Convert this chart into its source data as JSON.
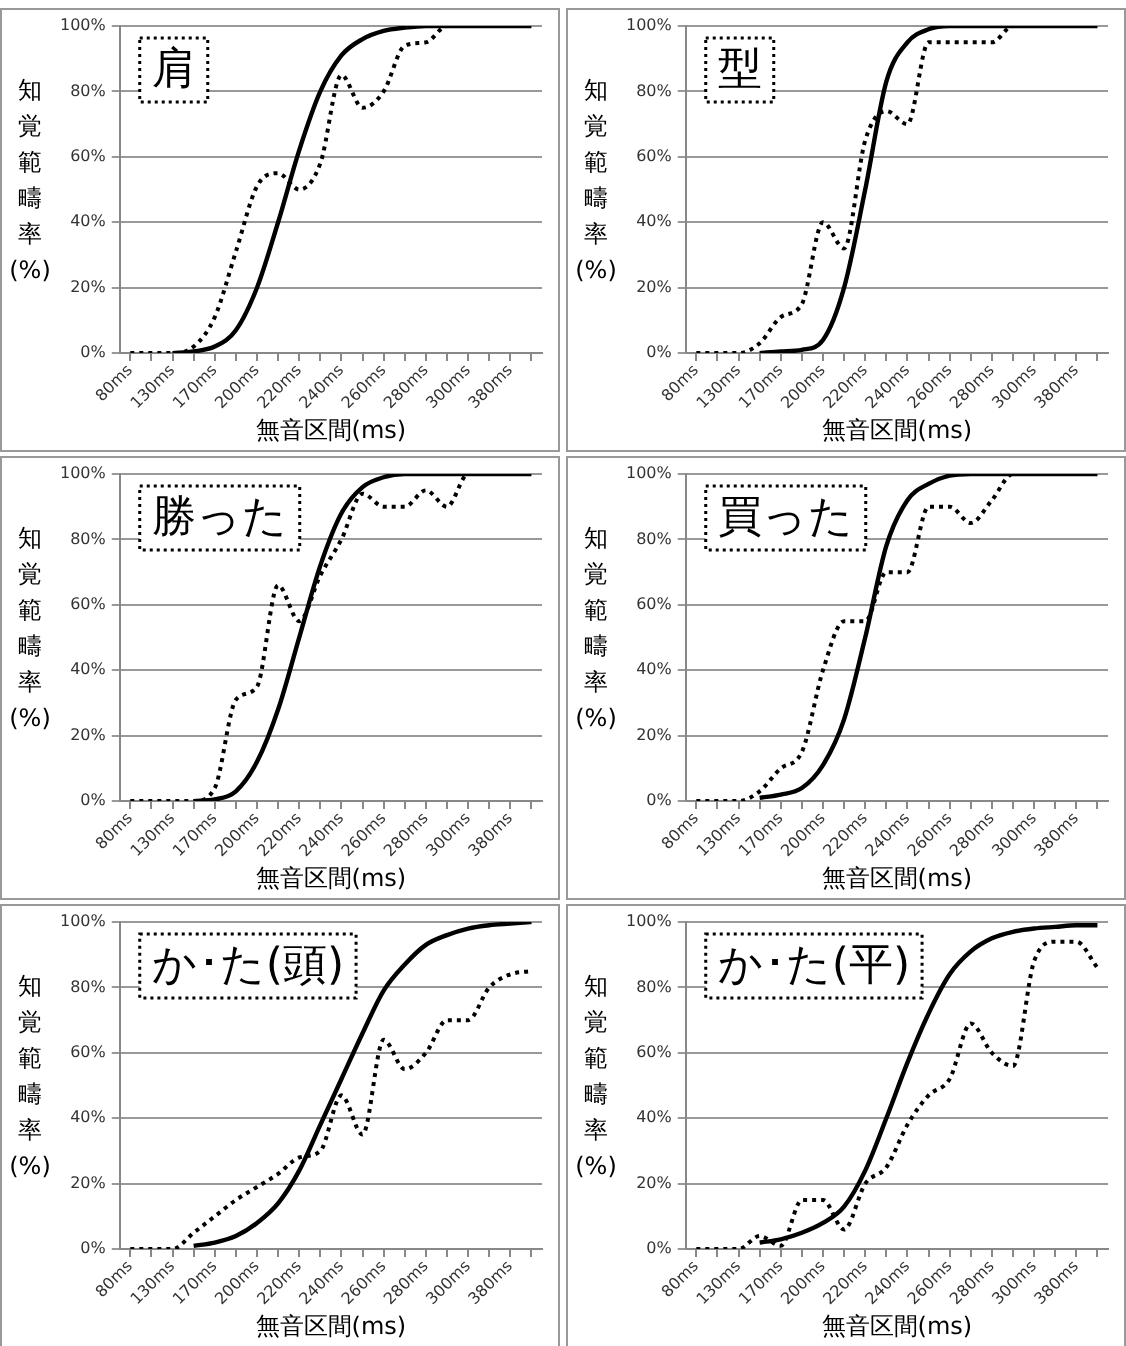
{
  "chart_data": [
    {
      "type": "line",
      "xlabel": "無音区間(ms)",
      "ylabel": "知覚範疇率(%)",
      "annotations": [
        "肩"
      ],
      "grid": "y",
      "ylim": [
        0,
        100
      ],
      "yticks": [
        {
          "value": 0,
          "label": "0%"
        },
        {
          "value": 20,
          "label": "20%"
        },
        {
          "value": 40,
          "label": "40%"
        },
        {
          "value": 60,
          "label": "60%"
        },
        {
          "value": 80,
          "label": "80%"
        },
        {
          "value": 100,
          "label": "100%"
        }
      ],
      "categories": [
        "80ms",
        null,
        "130ms",
        null,
        "170ms",
        null,
        "200ms",
        null,
        "220ms",
        null,
        "240ms",
        null,
        "260ms",
        null,
        "280ms",
        null,
        "300ms",
        null,
        "380ms",
        null
      ],
      "series": [
        {
          "color": "#000000",
          "line_style": "solid",
          "values": [
            null,
            null,
            0,
            0.5,
            2,
            7,
            20,
            40,
            62,
            80,
            91,
            96,
            98.5,
            99.5,
            100,
            100,
            100,
            100,
            100,
            100
          ]
        },
        {
          "color": "#000000",
          "line_style": "dotted",
          "values": [
            0,
            0,
            0,
            2,
            11,
            31,
            51,
            55,
            50,
            58,
            85,
            75,
            80,
            94,
            95,
            100,
            100,
            100,
            100,
            100
          ]
        }
      ]
    },
    {
      "type": "line",
      "xlabel": "無音区間(ms)",
      "ylabel": "知覚範疇率(%)",
      "annotations": [
        "型"
      ],
      "grid": "y",
      "ylim": [
        0,
        100
      ],
      "yticks": [
        {
          "value": 0,
          "label": "0%"
        },
        {
          "value": 20,
          "label": "20%"
        },
        {
          "value": 40,
          "label": "40%"
        },
        {
          "value": 60,
          "label": "60%"
        },
        {
          "value": 80,
          "label": "80%"
        },
        {
          "value": 100,
          "label": "100%"
        }
      ],
      "categories": [
        "80ms",
        null,
        "130ms",
        null,
        "170ms",
        null,
        "200ms",
        null,
        "220ms",
        null,
        "240ms",
        null,
        "260ms",
        null,
        "280ms",
        null,
        "300ms",
        null,
        "380ms",
        null
      ],
      "series": [
        {
          "color": "#000000",
          "line_style": "solid",
          "values": [
            null,
            null,
            null,
            0,
            0.5,
            1,
            4,
            20,
            50,
            83,
            95,
            99,
            100,
            100,
            100,
            100,
            100,
            100,
            100,
            100
          ]
        },
        {
          "color": "#000000",
          "line_style": "dotted",
          "values": [
            0,
            0,
            0,
            3,
            11,
            15,
            40,
            32,
            65,
            74,
            70,
            95,
            95,
            95,
            95,
            100,
            100,
            100,
            100,
            100
          ]
        }
      ]
    },
    {
      "type": "line",
      "xlabel": "無音区間(ms)",
      "ylabel": "知覚範疇率(%)",
      "annotations": [
        "勝った"
      ],
      "grid": "y",
      "ylim": [
        0,
        100
      ],
      "yticks": [
        {
          "value": 0,
          "label": "0%"
        },
        {
          "value": 20,
          "label": "20%"
        },
        {
          "value": 40,
          "label": "40%"
        },
        {
          "value": 60,
          "label": "60%"
        },
        {
          "value": 80,
          "label": "80%"
        },
        {
          "value": 100,
          "label": "100%"
        }
      ],
      "categories": [
        "80ms",
        null,
        "130ms",
        null,
        "170ms",
        null,
        "200ms",
        null,
        "220ms",
        null,
        "240ms",
        null,
        "260ms",
        null,
        "280ms",
        null,
        "300ms",
        null,
        "380ms",
        null
      ],
      "series": [
        {
          "color": "#000000",
          "line_style": "solid",
          "values": [
            null,
            null,
            null,
            0,
            0.5,
            3,
            12,
            28,
            50,
            72,
            88,
            96,
            99,
            100,
            100,
            100,
            100,
            100,
            100,
            100
          ]
        },
        {
          "color": "#000000",
          "line_style": "dotted",
          "values": [
            0,
            0,
            0,
            0,
            4,
            31,
            35,
            66,
            55,
            69,
            80,
            94,
            90,
            90,
            95,
            90,
            100,
            100,
            100,
            100
          ]
        }
      ]
    },
    {
      "type": "line",
      "xlabel": "無音区間(ms)",
      "ylabel": "知覚範疇率(%)",
      "annotations": [
        "買った"
      ],
      "grid": "y",
      "ylim": [
        0,
        100
      ],
      "yticks": [
        {
          "value": 0,
          "label": "0%"
        },
        {
          "value": 20,
          "label": "20%"
        },
        {
          "value": 40,
          "label": "40%"
        },
        {
          "value": 60,
          "label": "60%"
        },
        {
          "value": 80,
          "label": "80%"
        },
        {
          "value": 100,
          "label": "100%"
        }
      ],
      "categories": [
        "80ms",
        null,
        "130ms",
        null,
        "170ms",
        null,
        "200ms",
        null,
        "220ms",
        null,
        "240ms",
        null,
        "260ms",
        null,
        "280ms",
        null,
        "300ms",
        null,
        "380ms",
        null
      ],
      "series": [
        {
          "color": "#000000",
          "line_style": "solid",
          "values": [
            null,
            null,
            null,
            1,
            2,
            4,
            11,
            25,
            50,
            78,
            92,
            97,
            99.5,
            100,
            100,
            100,
            100,
            100,
            100,
            100
          ]
        },
        {
          "color": "#000000",
          "line_style": "dotted",
          "values": [
            0,
            0,
            0,
            3,
            10,
            15,
            40,
            55,
            55,
            70,
            70,
            90,
            90,
            85,
            92,
            100,
            100,
            100,
            100,
            100
          ]
        }
      ]
    },
    {
      "type": "line",
      "xlabel": "無音区間(ms)",
      "ylabel": "知覚範疇率(%)",
      "annotations": [
        "か･た(頭)"
      ],
      "grid": "y",
      "ylim": [
        0,
        100
      ],
      "yticks": [
        {
          "value": 0,
          "label": "0%"
        },
        {
          "value": 20,
          "label": "20%"
        },
        {
          "value": 40,
          "label": "40%"
        },
        {
          "value": 60,
          "label": "60%"
        },
        {
          "value": 80,
          "label": "80%"
        },
        {
          "value": 100,
          "label": "100%"
        }
      ],
      "categories": [
        "80ms",
        null,
        "130ms",
        null,
        "170ms",
        null,
        "200ms",
        null,
        "220ms",
        null,
        "240ms",
        null,
        "260ms",
        null,
        "280ms",
        null,
        "300ms",
        null,
        "380ms",
        null
      ],
      "series": [
        {
          "color": "#000000",
          "line_style": "solid",
          "values": [
            null,
            null,
            null,
            1,
            2,
            4,
            8,
            14,
            24,
            38,
            52,
            66,
            79,
            87,
            93,
            96,
            98,
            99,
            99.5,
            100
          ]
        },
        {
          "color": "#000000",
          "line_style": "dotted",
          "values": [
            0,
            0,
            0,
            5,
            10,
            15,
            19,
            23,
            28,
            30,
            47,
            35,
            64,
            55,
            60,
            70,
            70,
            80,
            84,
            85
          ]
        }
      ]
    },
    {
      "type": "line",
      "xlabel": "無音区間(ms)",
      "ylabel": "知覚範疇率(%)",
      "annotations": [
        "か･た(平)"
      ],
      "grid": "y",
      "ylim": [
        0,
        100
      ],
      "yticks": [
        {
          "value": 0,
          "label": "0%"
        },
        {
          "value": 20,
          "label": "20%"
        },
        {
          "value": 40,
          "label": "40%"
        },
        {
          "value": 60,
          "label": "60%"
        },
        {
          "value": 80,
          "label": "80%"
        },
        {
          "value": 100,
          "label": "100%"
        }
      ],
      "categories": [
        "80ms",
        null,
        "130ms",
        null,
        "170ms",
        null,
        "200ms",
        null,
        "220ms",
        null,
        "240ms",
        null,
        "260ms",
        null,
        "280ms",
        null,
        "300ms",
        null,
        "380ms",
        null
      ],
      "series": [
        {
          "color": "#000000",
          "line_style": "solid",
          "values": [
            null,
            null,
            null,
            2,
            3,
            5,
            8,
            13,
            24,
            40,
            57,
            72,
            84,
            91,
            95,
            97,
            98,
            98.5,
            99,
            99
          ]
        },
        {
          "color": "#000000",
          "line_style": "dotted",
          "values": [
            0,
            0,
            0,
            4,
            1,
            15,
            15,
            6,
            20,
            25,
            38,
            47,
            52,
            69,
            60,
            56,
            88,
            94,
            94,
            86
          ]
        }
      ]
    }
  ]
}
